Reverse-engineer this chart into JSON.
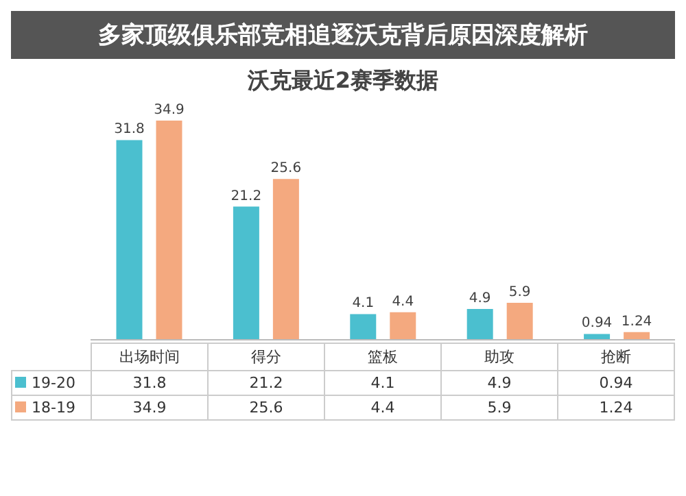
{
  "chart_data": {
    "type": "bar",
    "title": "沃克最近2赛季数据",
    "annotations": [
      "多家顶级俱乐部竞相追逐沃克背后原因深度解析",
      "31.8",
      "21.2",
      "4.1",
      "4.9",
      "0.94",
      "34.9",
      "25.6",
      "4.4",
      "5.9",
      "1.24"
    ],
    "categories": [
      "出场时间",
      "得分",
      "篮板",
      "助攻",
      "抢断"
    ],
    "series": [
      {
        "name": "19-20",
        "color": "#4bbfcf",
        "values": [
          31.8,
          21.2,
          4.1,
          4.9,
          0.94
        ],
        "value_labels": [
          "31.8",
          "21.2",
          "4.1",
          "4.9",
          "0.94"
        ]
      },
      {
        "name": "18-19",
        "color": "#f4a97f",
        "values": [
          34.9,
          25.6,
          4.4,
          5.9,
          1.24
        ],
        "value_labels": [
          "34.9",
          "25.6",
          "4.4",
          "5.9",
          "1.24"
        ]
      }
    ],
    "data_labels": true,
    "legend": "bottom",
    "grid": false
  }
}
